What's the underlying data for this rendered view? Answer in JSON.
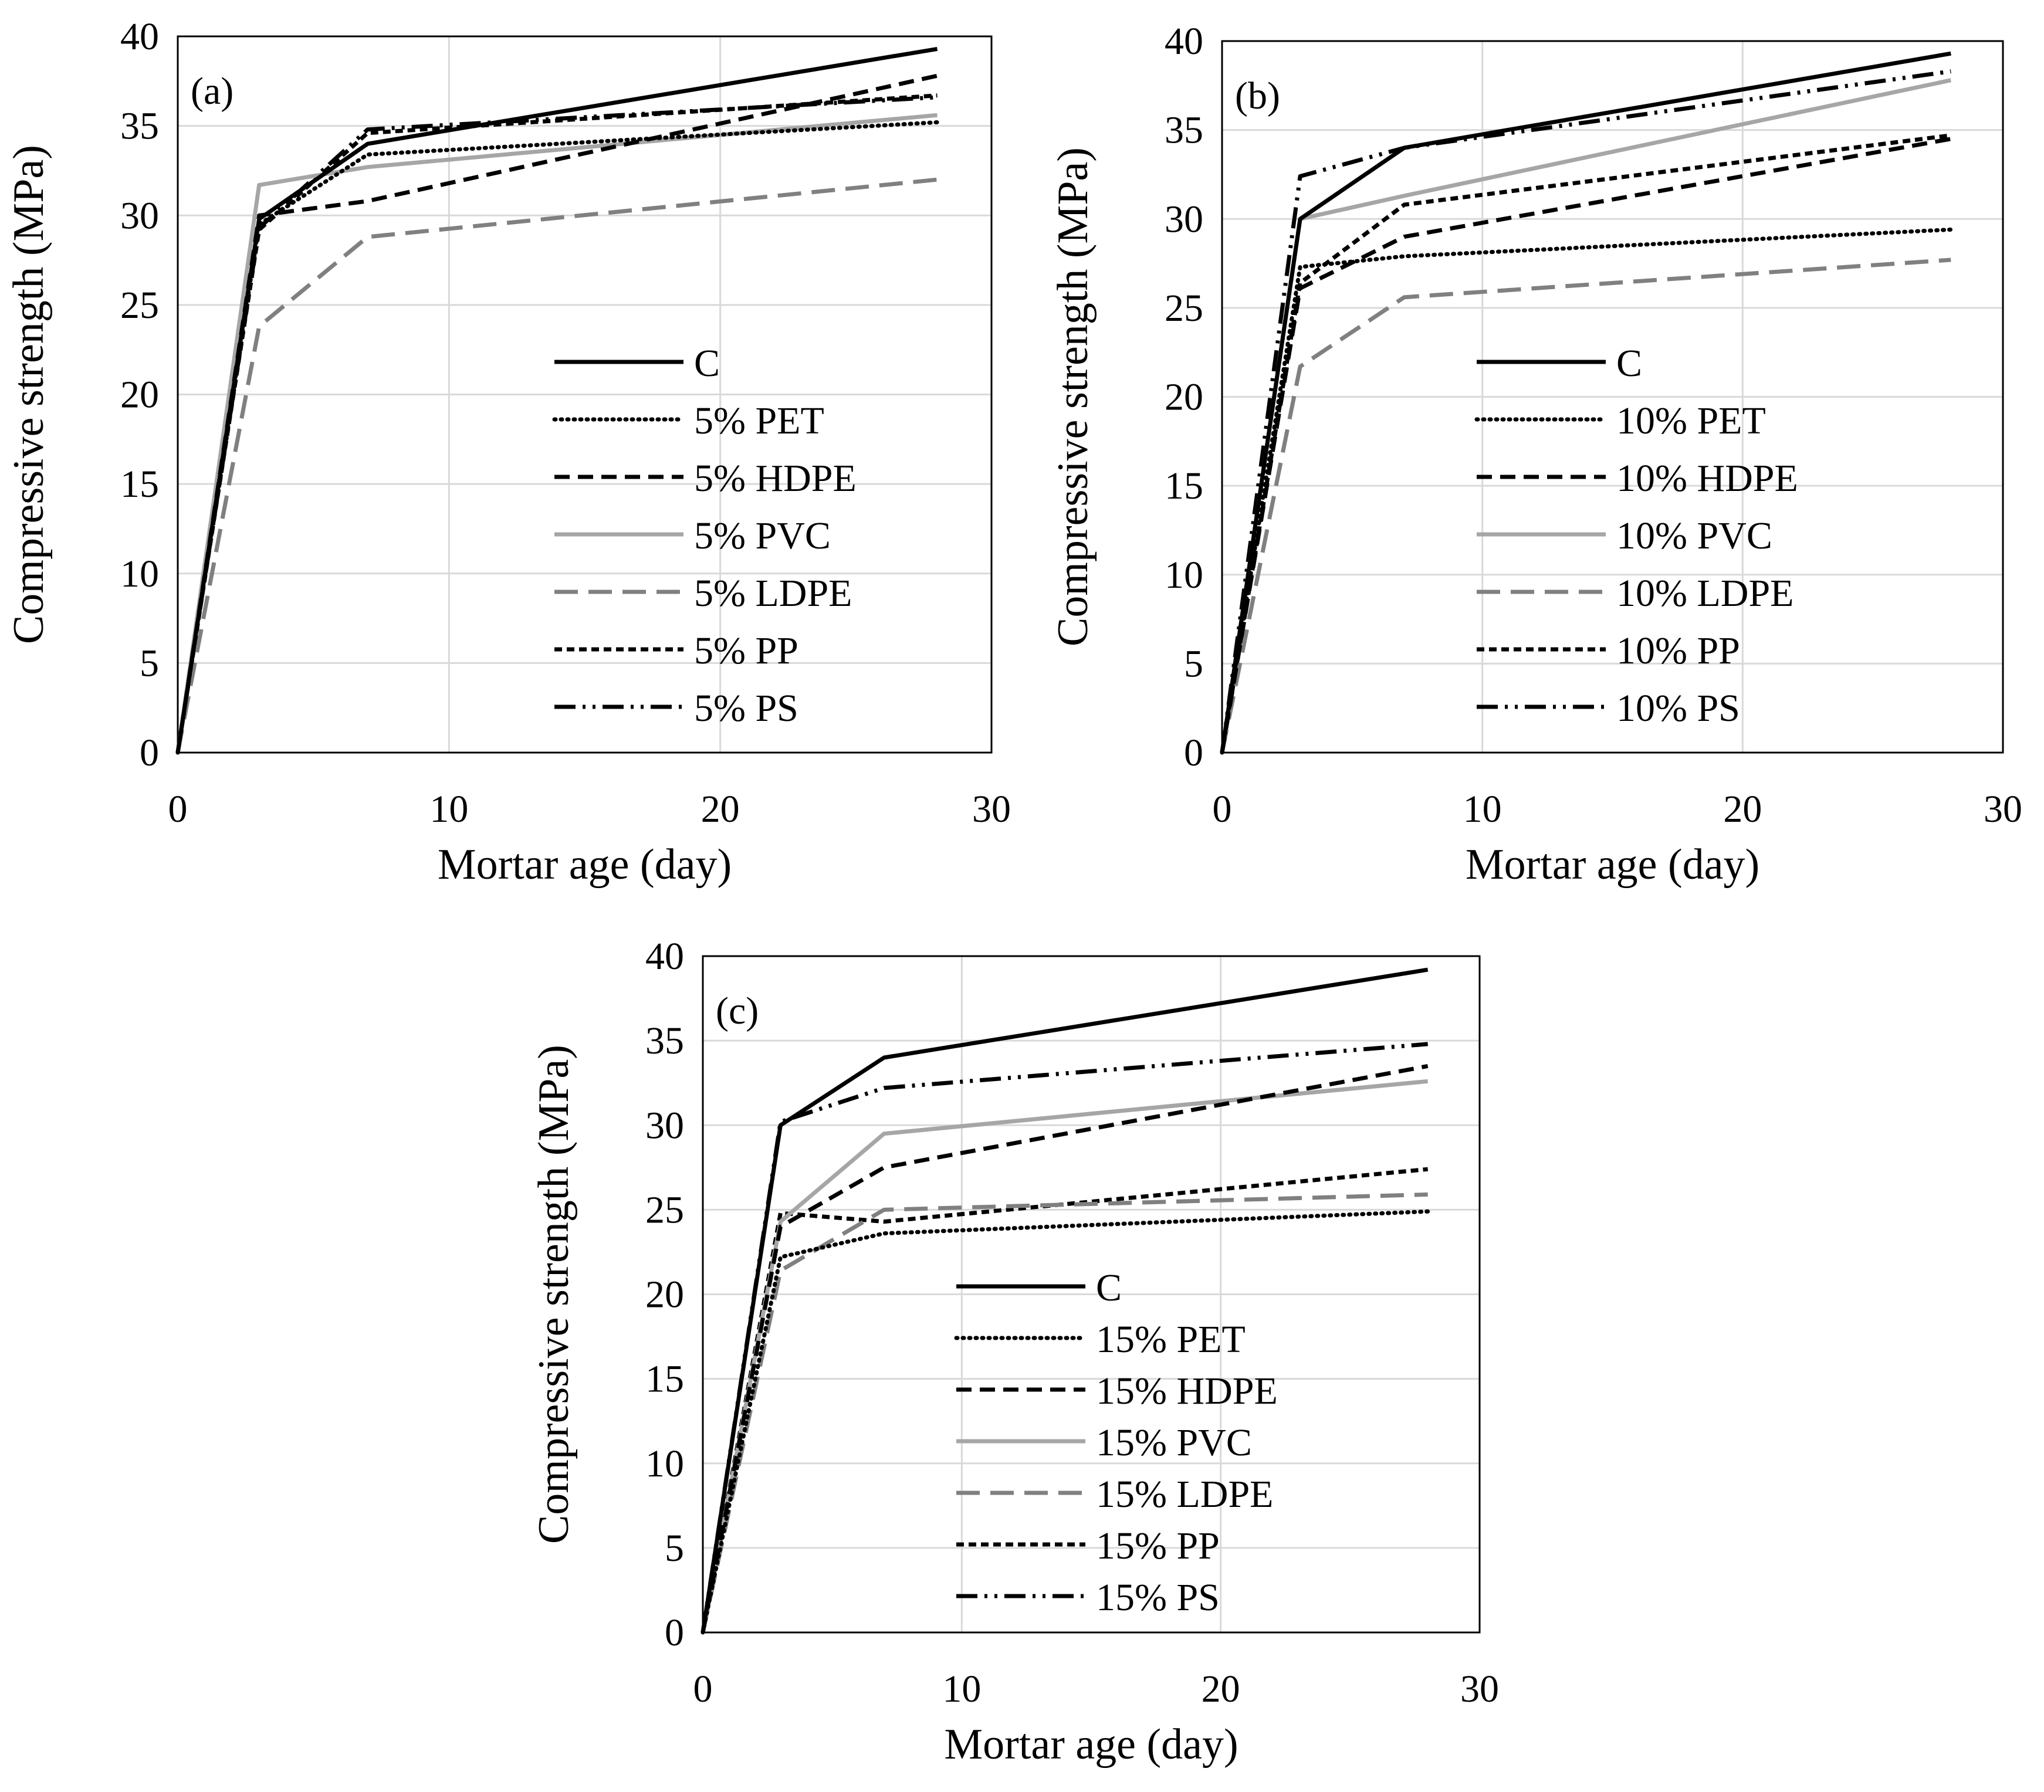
{
  "figure": {
    "styles": {
      "C": {
        "color": "#000000",
        "dash": ""
      },
      "PET": {
        "color": "#000000",
        "dash": "2 9"
      },
      "HDPE": {
        "color": "#000000",
        "dash": "26 14"
      },
      "PVC": {
        "color": "#a6a6a6",
        "dash": ""
      },
      "LDPE": {
        "color": "#808080",
        "dash": "40 18"
      },
      "PP": {
        "color": "#000000",
        "dash": "13 8"
      },
      "PS": {
        "color": "#000000",
        "dash": "36 12 5 12 5 12"
      }
    }
  },
  "chart_data": [
    {
      "panel": "(a)",
      "type": "line",
      "xlabel": "Mortar age (day)",
      "ylabel": "Compressive strength (MPa)",
      "xlim": [
        0,
        30
      ],
      "ylim": [
        0,
        40
      ],
      "xticks": [
        0,
        10,
        20,
        30
      ],
      "yticks": [
        0,
        5,
        10,
        15,
        20,
        25,
        30,
        35,
        40
      ],
      "grid": true,
      "legend_position": "lower-right",
      "x": [
        0,
        3,
        7,
        28
      ],
      "series": [
        {
          "key": "C",
          "name": "C",
          "values": [
            0,
            29.8,
            34.0,
            39.3
          ]
        },
        {
          "key": "PET",
          "name": "5% PET",
          "values": [
            0,
            29.5,
            33.4,
            35.2
          ]
        },
        {
          "key": "HDPE",
          "name": "5% HDPE",
          "values": [
            0,
            30.0,
            30.8,
            37.8
          ]
        },
        {
          "key": "PVC",
          "name": "5% PVC",
          "values": [
            0,
            31.7,
            32.7,
            35.6
          ]
        },
        {
          "key": "LDPE",
          "name": "5% LDPE",
          "values": [
            0,
            23.8,
            28.8,
            32.0
          ]
        },
        {
          "key": "PP",
          "name": "5% PP",
          "values": [
            0,
            29.2,
            34.6,
            36.7
          ]
        },
        {
          "key": "PS",
          "name": "5% PS",
          "values": [
            0,
            29.3,
            34.8,
            36.6
          ]
        }
      ]
    },
    {
      "panel": "(b)",
      "type": "line",
      "xlabel": "Mortar age (day)",
      "ylabel": "Compressive strength (MPa)",
      "xlim": [
        0,
        30
      ],
      "ylim": [
        0,
        40
      ],
      "xticks": [
        0,
        10,
        20,
        30
      ],
      "yticks": [
        0,
        5,
        10,
        15,
        20,
        25,
        30,
        35,
        40
      ],
      "grid": true,
      "legend_position": "lower-right",
      "x": [
        0,
        3,
        7,
        28
      ],
      "series": [
        {
          "key": "C",
          "name": "C",
          "values": [
            0,
            30.0,
            34.0,
            39.3
          ]
        },
        {
          "key": "PET",
          "name": "10% PET",
          "values": [
            0,
            27.3,
            27.9,
            29.4
          ]
        },
        {
          "key": "HDPE",
          "name": "10% HDPE",
          "values": [
            0,
            26.1,
            29.0,
            34.5
          ]
        },
        {
          "key": "PVC",
          "name": "10% PVC",
          "values": [
            0,
            30.0,
            31.3,
            37.8
          ]
        },
        {
          "key": "LDPE",
          "name": "10% LDPE",
          "values": [
            0,
            21.7,
            25.6,
            27.7
          ]
        },
        {
          "key": "PP",
          "name": "10% PP",
          "values": [
            0,
            26.4,
            30.8,
            34.7
          ]
        },
        {
          "key": "PS",
          "name": "10% PS",
          "values": [
            0,
            32.4,
            34.0,
            38.3
          ]
        }
      ]
    },
    {
      "panel": "(c)",
      "type": "line",
      "xlabel": "Mortar age (day)",
      "ylabel": "Compressive strength (MPa)",
      "xlim": [
        0,
        30
      ],
      "ylim": [
        0,
        40
      ],
      "xticks": [
        0,
        10,
        20,
        30
      ],
      "yticks": [
        0,
        5,
        10,
        15,
        20,
        25,
        30,
        35,
        40
      ],
      "grid": true,
      "legend_position": "lower-center",
      "x": [
        0,
        3,
        7,
        28
      ],
      "series": [
        {
          "key": "C",
          "name": "C",
          "values": [
            0,
            30.0,
            34.0,
            39.2
          ]
        },
        {
          "key": "PET",
          "name": "15% PET",
          "values": [
            0,
            22.2,
            23.6,
            24.9
          ]
        },
        {
          "key": "HDPE",
          "name": "15% HDPE",
          "values": [
            0,
            24.0,
            27.5,
            33.5
          ]
        },
        {
          "key": "PVC",
          "name": "15% PVC",
          "values": [
            0,
            24.3,
            29.5,
            32.6
          ]
        },
        {
          "key": "LDPE",
          "name": "15% LDPE",
          "values": [
            0,
            21.4,
            25.0,
            25.9
          ]
        },
        {
          "key": "PP",
          "name": "15% PP",
          "values": [
            0,
            24.8,
            24.3,
            27.4
          ]
        },
        {
          "key": "PS",
          "name": "15% PS",
          "values": [
            0,
            30.2,
            32.2,
            34.8
          ]
        }
      ]
    }
  ]
}
